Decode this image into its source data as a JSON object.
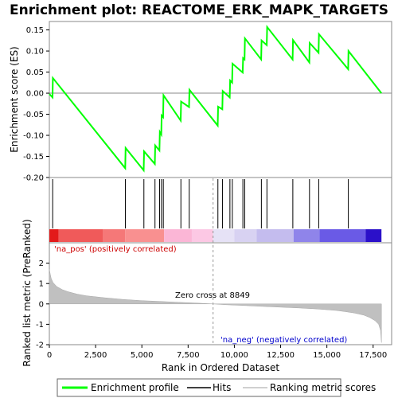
{
  "chart_data": {
    "type": "line",
    "title": "Enrichment plot: REACTOME_ERK_MAPK_TARGETS",
    "es_panel": {
      "ylabel": "Enrichment score (ES)",
      "ylim": [
        -0.2,
        0.17
      ],
      "yticks": [
        "0.15",
        "0.10",
        "0.05",
        "0.00",
        "-0.05",
        "-0.10",
        "-0.15",
        "-0.20"
      ],
      "ytick_values": [
        0.15,
        0.1,
        0.05,
        0.0,
        -0.05,
        -0.1,
        -0.15,
        -0.2
      ],
      "series": [
        {
          "name": "Enrichment profile",
          "color": "#00ff00",
          "x": [
            0,
            170,
            190,
            4100,
            4120,
            5100,
            5120,
            5700,
            5720,
            5950,
            5970,
            6050,
            6070,
            6150,
            6170,
            7100,
            7120,
            7550,
            7570,
            9100,
            9120,
            9350,
            9370,
            9750,
            9770,
            9880,
            9900,
            10450,
            10470,
            10550,
            10570,
            11450,
            11470,
            11750,
            11770,
            13150,
            13170,
            14050,
            14070,
            14550,
            14570,
            16150,
            16170,
            17950
          ],
          "y": [
            -0.002,
            -0.01,
            0.036,
            -0.178,
            -0.13,
            -0.183,
            -0.138,
            -0.168,
            -0.124,
            -0.136,
            -0.092,
            -0.098,
            -0.053,
            -0.057,
            -0.005,
            -0.065,
            -0.02,
            -0.033,
            0.008,
            -0.077,
            -0.032,
            -0.038,
            0.005,
            -0.01,
            0.03,
            0.025,
            0.07,
            0.049,
            0.083,
            0.08,
            0.13,
            0.08,
            0.125,
            0.114,
            0.157,
            0.08,
            0.126,
            0.073,
            0.119,
            0.096,
            0.14,
            0.057,
            0.1,
            0.0
          ]
        }
      ]
    },
    "hits": {
      "name": "Hits",
      "positions": [
        180,
        4110,
        5110,
        5710,
        5960,
        6060,
        6160,
        7110,
        7560,
        9110,
        9360,
        9760,
        9890,
        10460,
        10560,
        11460,
        11760,
        13160,
        14060,
        14560,
        16160
      ]
    },
    "heatbar": {
      "segments": [
        {
          "start": 0,
          "end": 500,
          "color": "#e31a1a"
        },
        {
          "start": 500,
          "end": 2900,
          "color": "#f05a5a"
        },
        {
          "start": 2900,
          "end": 4100,
          "color": "#f57878"
        },
        {
          "start": 4100,
          "end": 6200,
          "color": "#f99090"
        },
        {
          "start": 6200,
          "end": 7700,
          "color": "#fbb6d6"
        },
        {
          "start": 7700,
          "end": 8849,
          "color": "#fcc8e4"
        },
        {
          "start": 8849,
          "end": 10000,
          "color": "#e6e2f6"
        },
        {
          "start": 10000,
          "end": 11200,
          "color": "#d8d2f2"
        },
        {
          "start": 11200,
          "end": 13200,
          "color": "#c4bcee"
        },
        {
          "start": 13200,
          "end": 14600,
          "color": "#8f84ea"
        },
        {
          "start": 14600,
          "end": 17100,
          "color": "#6a5ae6"
        },
        {
          "start": 17100,
          "end": 17950,
          "color": "#2b10c9"
        }
      ]
    },
    "metric_panel": {
      "ylabel": "Ranked list metric (PreRanked)",
      "ylim": [
        -2,
        3
      ],
      "yticks": [
        "2",
        "1",
        "0",
        "-1",
        "-2"
      ],
      "ytick_values": [
        2,
        1,
        0,
        -1,
        -2
      ],
      "series": [
        {
          "name": "Ranking metric scores",
          "color": "#c0c0c0",
          "x": [
            0,
            50,
            100,
            200,
            400,
            700,
            1000,
            1500,
            2000,
            3000,
            4000,
            5000,
            6000,
            7000,
            8000,
            8849,
            9500,
            10500,
            11500,
            12500,
            13500,
            14500,
            15500,
            16000,
            16500,
            17000,
            17300,
            17600,
            17800,
            17900,
            17950
          ],
          "y": [
            1.7,
            1.45,
            1.25,
            1.05,
            0.85,
            0.7,
            0.6,
            0.48,
            0.4,
            0.3,
            0.22,
            0.16,
            0.12,
            0.08,
            0.04,
            0.0,
            -0.04,
            -0.08,
            -0.12,
            -0.16,
            -0.2,
            -0.25,
            -0.32,
            -0.38,
            -0.45,
            -0.55,
            -0.66,
            -0.82,
            -1.0,
            -1.3,
            -1.9
          ]
        }
      ]
    },
    "zero_cross": {
      "label": "Zero cross at 8849",
      "rank": 8849
    },
    "pos_label": "'na_pos' (positively correlated)",
    "neg_label": "'na_neg' (negatively correlated)",
    "xlabel": "Rank in Ordered Dataset",
    "xlim": [
      0,
      18500
    ],
    "xticks": [
      "0",
      "2,500",
      "5,000",
      "7,500",
      "10,000",
      "12,500",
      "15,000",
      "17,500"
    ],
    "xtick_values": [
      0,
      2500,
      5000,
      7500,
      10000,
      12500,
      15000,
      17500
    ],
    "legend": [
      "Enrichment profile",
      "Hits",
      "Ranking metric scores"
    ],
    "colors": {
      "profile": "#00ff00",
      "hits": "#000000",
      "metric": "#c0c0c0",
      "pos": "#cc0000",
      "neg": "#0000cc"
    }
  }
}
